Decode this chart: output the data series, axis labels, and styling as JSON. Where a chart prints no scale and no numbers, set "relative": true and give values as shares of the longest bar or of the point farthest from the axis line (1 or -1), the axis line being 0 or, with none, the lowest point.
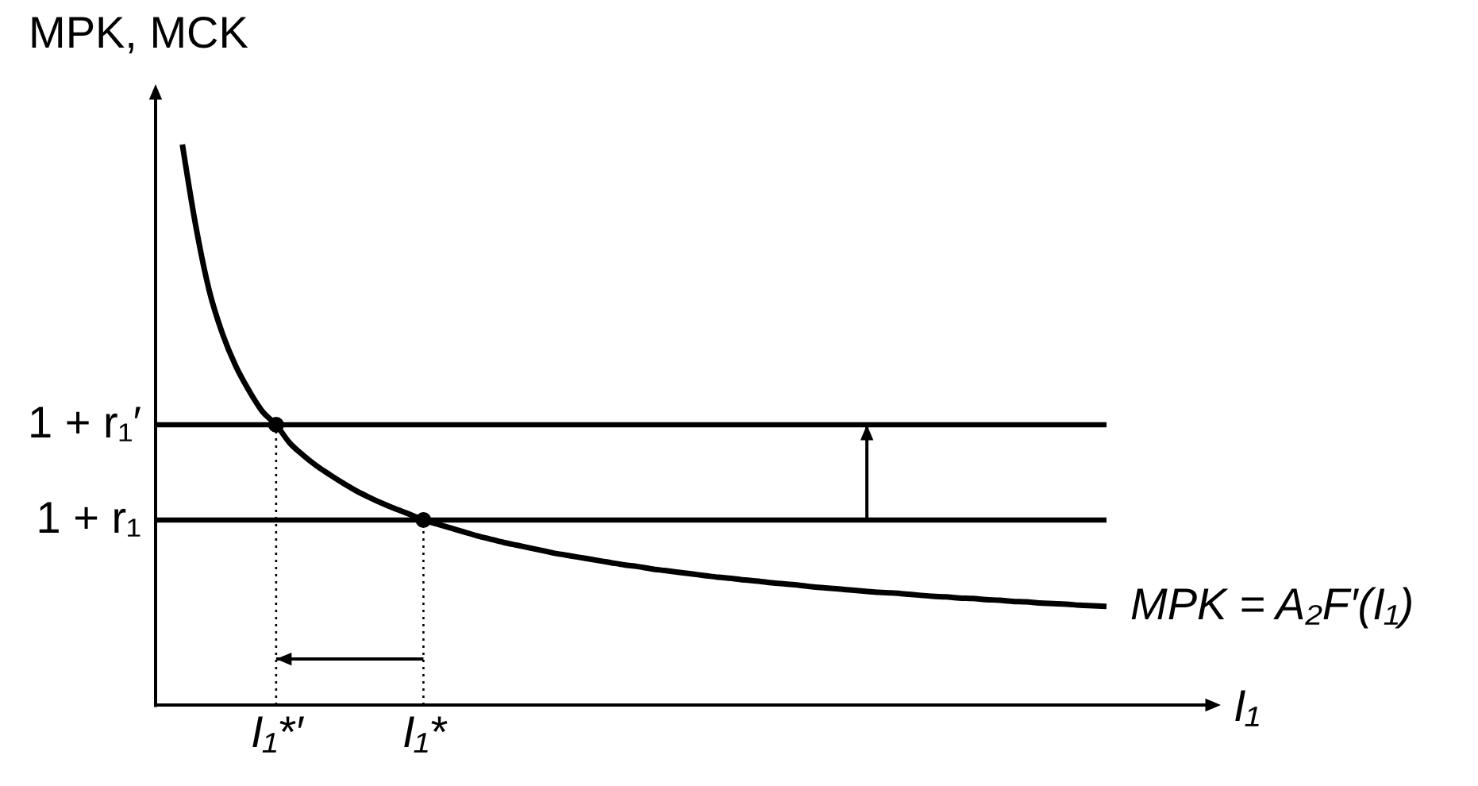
{
  "chart_data": {
    "type": "line",
    "relative": true,
    "xlabel": "I₁",
    "ylabel": "MPK, MCK",
    "categories": [
      null,
      null,
      null,
      null,
      null,
      null,
      null,
      null,
      null,
      "I₁*′",
      null,
      null,
      null,
      null,
      null,
      null,
      null,
      null,
      null,
      null,
      "I₁*",
      null,
      null,
      null,
      null,
      null,
      null,
      null,
      null,
      null,
      null,
      null,
      null,
      null,
      null,
      null,
      null,
      null,
      null,
      null,
      null,
      null,
      null,
      null,
      null,
      null,
      null,
      null,
      null,
      null,
      null,
      null,
      null,
      null,
      null,
      null,
      null,
      null,
      null,
      null,
      null,
      null,
      null,
      null,
      null,
      null,
      null,
      null,
      null,
      null,
      null,
      null
    ],
    "series": [
      {
        "name": "MPK = A₂F′(I₁)",
        "color": "#000000",
        "values": [
          null,
          null,
          1.0,
          0.855,
          0.74,
          0.662,
          0.604,
          0.56,
          0.523,
          0.5,
          0.468,
          0.446,
          0.427,
          0.411,
          0.396,
          0.382,
          0.37,
          0.359,
          0.349,
          0.34,
          0.33,
          0.323,
          0.316,
          0.309,
          0.302,
          0.296,
          0.29,
          0.285,
          0.28,
          0.275,
          0.27,
          0.266,
          0.262,
          0.258,
          0.254,
          0.25,
          0.247,
          0.243,
          0.24,
          0.237,
          0.234,
          0.231,
          0.228,
          0.226,
          0.223,
          0.221,
          0.218,
          0.216,
          0.214,
          0.211,
          0.209,
          0.207,
          0.205,
          0.203,
          0.201,
          0.2,
          0.198,
          0.196,
          0.194,
          0.193,
          0.191,
          0.19,
          0.188,
          0.187,
          0.185,
          0.184,
          0.182,
          0.181,
          0.18,
          0.178,
          0.177,
          0.176
        ]
      },
      {
        "color": "#000000",
        "line_style": "dotted",
        "x": [
          "I₁*′",
          "I₁*′"
        ],
        "values": [
          0,
          0.5
        ]
      },
      {
        "color": "#000000",
        "line_style": "dotted",
        "x": [
          "I₁*",
          "I₁*"
        ],
        "values": [
          0,
          0.33
        ]
      },
      {
        "type": "scatter",
        "color": "#000000",
        "marker": "circle",
        "x": [
          "I₁*′",
          "I₁*"
        ],
        "values": [
          0.5,
          0.33
        ]
      }
    ],
    "ref_lines": [
      {
        "axis": "y",
        "value": 0.5,
        "label": "1 + r₁′",
        "color": "#000000"
      },
      {
        "axis": "y",
        "value": 0.33,
        "label": "1 + r₁",
        "color": "#000000"
      }
    ]
  }
}
